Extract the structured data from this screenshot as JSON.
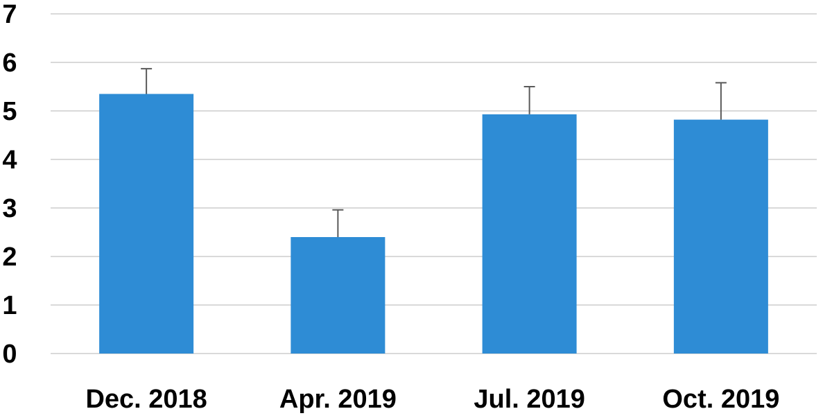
{
  "chart_data": {
    "type": "bar",
    "categories": [
      "Dec. 2018",
      "Apr. 2019",
      "Jul. 2019",
      "Oct. 2019"
    ],
    "values": [
      5.35,
      2.4,
      4.93,
      4.82
    ],
    "error_bars": [
      0.52,
      0.56,
      0.57,
      0.76
    ],
    "yticks": [
      "0",
      "1",
      "2",
      "3",
      "4",
      "5",
      "6",
      "7"
    ],
    "ylim": [
      0,
      7
    ],
    "grid": true,
    "bar_color": "#2E8CD5",
    "error_bar_color": "#595959",
    "grid_color": "#D9D9D9"
  }
}
